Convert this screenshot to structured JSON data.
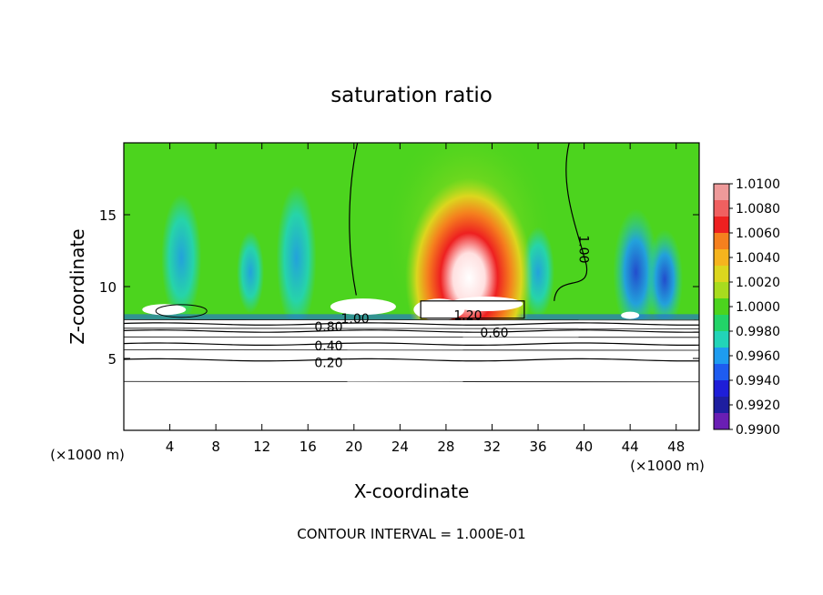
{
  "chart_data": {
    "type": "heatmap",
    "title": "saturation ratio",
    "xlabel": "X-coordinate",
    "ylabel": "Z-coordinate",
    "x_unit_left": "(×1000 m)",
    "x_unit_right": "(×1000 m)",
    "xlim": [
      0,
      50
    ],
    "ylim": [
      0,
      20
    ],
    "x_ticks": [
      4,
      8,
      12,
      16,
      20,
      24,
      28,
      32,
      36,
      40,
      44,
      48
    ],
    "y_ticks": [
      5,
      10,
      15
    ],
    "colorbar": {
      "labels": [
        "1.0100",
        "1.0080",
        "1.0060",
        "1.0040",
        "1.0020",
        "1.0000",
        "0.9980",
        "0.9960",
        "0.9940",
        "0.9920",
        "0.9900"
      ],
      "colors": [
        "#ee9a9a",
        "#f06060",
        "#ee2020",
        "#f5801e",
        "#f5b41e",
        "#dcd61e",
        "#a8dc1e",
        "#4cd41e",
        "#22d468",
        "#22d4b8",
        "#1e9cf0",
        "#1e5cf0",
        "#1e1ed8",
        "#1e1ea0",
        "#6a1eb4"
      ],
      "min": 0.99,
      "max": 1.01
    },
    "contour_levels": [
      {
        "label": "0.20",
        "z": 4.9
      },
      {
        "label": "0.40",
        "z": 6.0
      },
      {
        "label": "0.60",
        "z": 6.9
      },
      {
        "label": "0.80",
        "z": 7.4
      }
    ],
    "contour_annotations": [
      "0.80",
      "1.00",
      "1.20",
      "0.60",
      "0.40",
      "0.20",
      "1.00"
    ],
    "supersaturation_core": {
      "x_center": 30,
      "z_center": 10.6,
      "peak": 1.01
    },
    "footer": "CONTOUR INTERVAL = 1.000E-01"
  }
}
